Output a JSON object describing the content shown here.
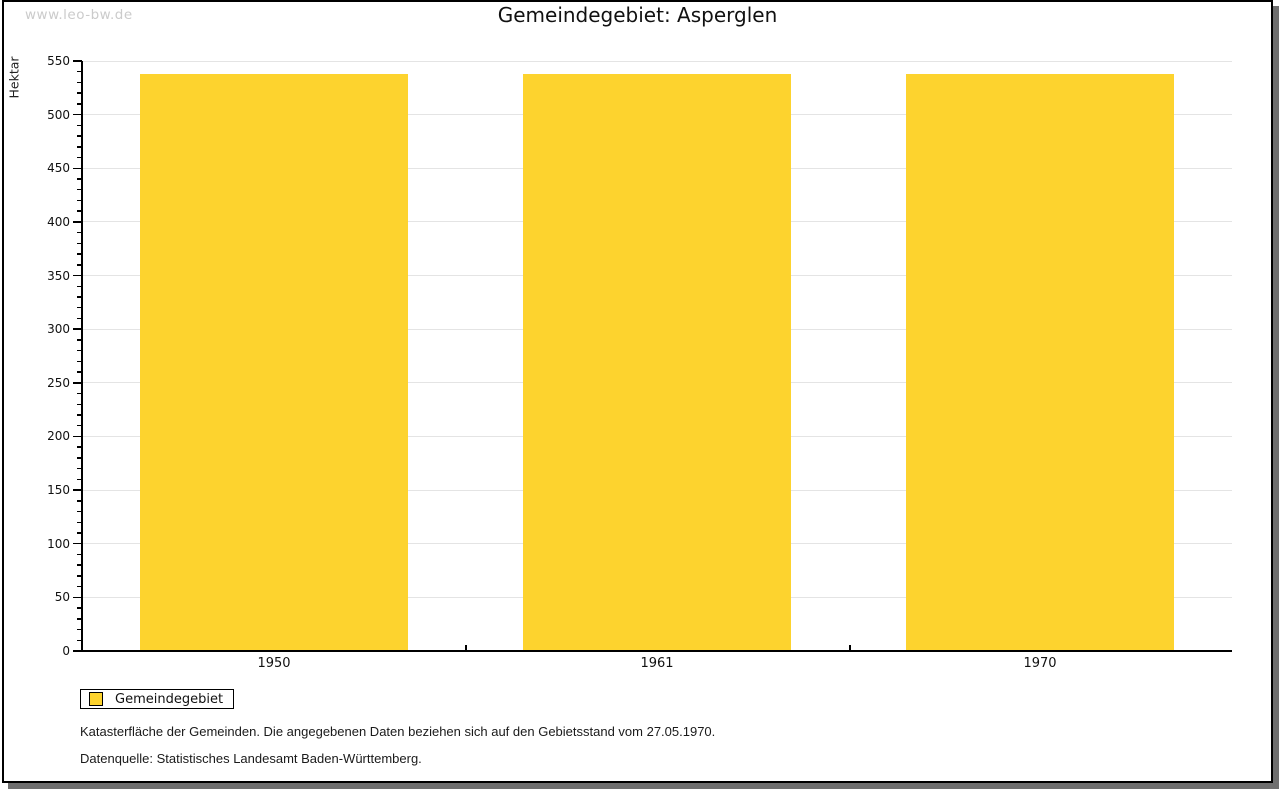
{
  "watermark": "www.leo-bw.de",
  "title": "Gemeindegebiet: Asperglen",
  "chart_data": {
    "type": "bar",
    "title": "Gemeindegebiet: Asperglen",
    "categories": [
      "1950",
      "1961",
      "1970"
    ],
    "series": [
      {
        "name": "Gemeindegebiet",
        "values": [
          538,
          538,
          538
        ]
      }
    ],
    "xlabel": "",
    "ylabel": "Hektar",
    "ylim": [
      0,
      550
    ],
    "ytick_step": 50,
    "yminor_step": 10,
    "grid": true,
    "legend_position": "bottom-left",
    "bar_color": "#fdd32e",
    "gridline_color": "#e4e4e4",
    "axis_color": "#000000"
  },
  "legend": {
    "items": [
      {
        "label": "Gemeindegebiet",
        "color": "#fdd32e"
      }
    ]
  },
  "footer": {
    "line1": "Katasterfläche der Gemeinden. Die angegebenen Daten beziehen sich auf den Gebietsstand vom 27.05.1970.",
    "line2": "Datenquelle: Statistisches Landesamt Baden-Württemberg."
  }
}
